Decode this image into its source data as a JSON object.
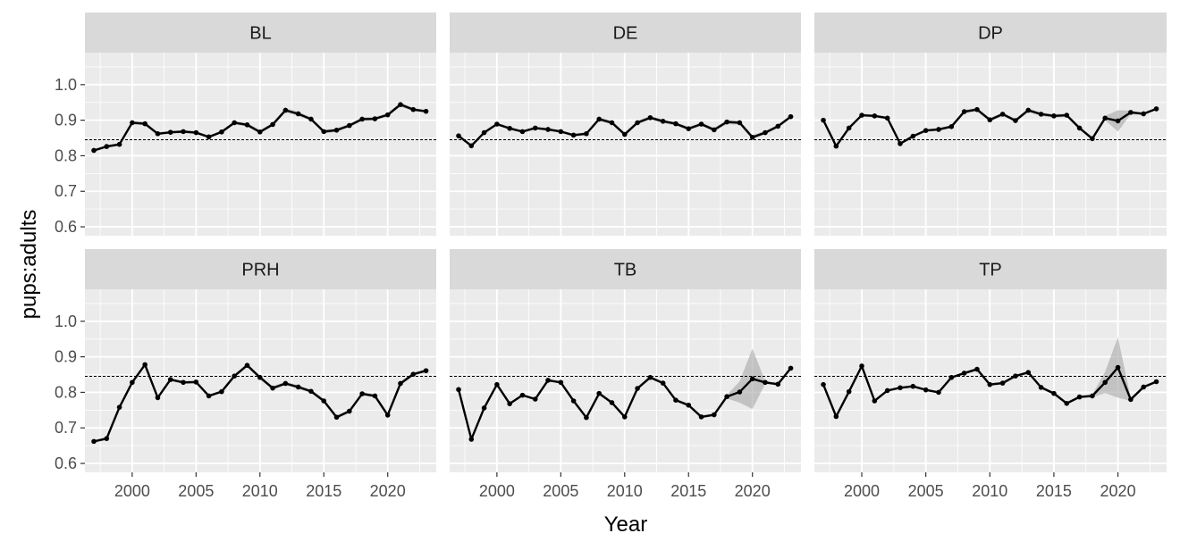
{
  "chart_data": {
    "type": "line",
    "xlabel": "Year",
    "ylabel": "pups:adults",
    "x_ticks": [
      2000,
      2005,
      2010,
      2015,
      2020
    ],
    "y_ticks": [
      0.6,
      0.7,
      0.8,
      0.9,
      1.0
    ],
    "y_tick_labels": [
      "0.6",
      "0.7",
      "0.8",
      "0.9",
      "1.0"
    ],
    "xlim": [
      1996.3,
      2023.8
    ],
    "ylim": [
      0.575,
      1.09
    ],
    "reference_line": 0.845,
    "grid": true,
    "x": [
      1997,
      1998,
      1999,
      2000,
      2001,
      2002,
      2003,
      2004,
      2005,
      2006,
      2007,
      2008,
      2009,
      2010,
      2011,
      2012,
      2013,
      2014,
      2015,
      2016,
      2017,
      2018,
      2019,
      2020,
      2021,
      2022,
      2023
    ],
    "panels": [
      {
        "name": "BL",
        "values": [
          0.815,
          0.826,
          0.832,
          0.893,
          0.89,
          0.862,
          0.866,
          0.868,
          0.865,
          0.853,
          0.867,
          0.893,
          0.887,
          0.867,
          0.888,
          0.928,
          0.918,
          0.903,
          0.868,
          0.872,
          0.885,
          0.903,
          0.904,
          0.915,
          0.944,
          0.93,
          0.925
        ],
        "ribbon": [
          0.004,
          0.004,
          0.004,
          0.005,
          0.005,
          0.004,
          0.004,
          0.004,
          0.004,
          0.004,
          0.004,
          0.005,
          0.005,
          0.005,
          0.005,
          0.006,
          0.006,
          0.005,
          0.005,
          0.005,
          0.005,
          0.005,
          0.005,
          0.005,
          0.006,
          0.005,
          0.004
        ]
      },
      {
        "name": "DE",
        "values": [
          0.856,
          0.828,
          0.865,
          0.889,
          0.877,
          0.868,
          0.878,
          0.874,
          0.868,
          0.858,
          0.862,
          0.903,
          0.893,
          0.86,
          0.893,
          0.907,
          0.897,
          0.89,
          0.876,
          0.889,
          0.873,
          0.895,
          0.893,
          0.852,
          0.865,
          0.883,
          0.91
        ],
        "ribbon": [
          0.004,
          0.004,
          0.004,
          0.004,
          0.004,
          0.004,
          0.004,
          0.004,
          0.004,
          0.004,
          0.004,
          0.005,
          0.005,
          0.005,
          0.005,
          0.005,
          0.005,
          0.005,
          0.005,
          0.005,
          0.005,
          0.006,
          0.006,
          0.006,
          0.005,
          0.005,
          0.004
        ]
      },
      {
        "name": "DP",
        "values": [
          0.9,
          0.827,
          0.878,
          0.914,
          0.912,
          0.906,
          0.834,
          0.855,
          0.871,
          0.874,
          0.882,
          0.924,
          0.93,
          0.901,
          0.917,
          0.899,
          0.928,
          0.917,
          0.912,
          0.914,
          0.878,
          0.848,
          0.906,
          0.898,
          0.922,
          0.918,
          0.932
        ],
        "ribbon": [
          0.003,
          0.003,
          0.003,
          0.004,
          0.004,
          0.004,
          0.004,
          0.004,
          0.004,
          0.004,
          0.004,
          0.005,
          0.005,
          0.005,
          0.005,
          0.005,
          0.005,
          0.005,
          0.005,
          0.005,
          0.005,
          0.005,
          0.006,
          0.03,
          0.005,
          0.004,
          0.003
        ]
      },
      {
        "name": "PRH",
        "values": [
          0.662,
          0.67,
          0.758,
          0.828,
          0.878,
          0.785,
          0.836,
          0.828,
          0.829,
          0.79,
          0.802,
          0.846,
          0.876,
          0.842,
          0.812,
          0.825,
          0.815,
          0.803,
          0.776,
          0.73,
          0.747,
          0.796,
          0.79,
          0.736,
          0.825,
          0.851,
          0.861
        ],
        "ribbon": [
          0.004,
          0.004,
          0.004,
          0.004,
          0.004,
          0.004,
          0.004,
          0.004,
          0.004,
          0.004,
          0.004,
          0.005,
          0.005,
          0.005,
          0.005,
          0.005,
          0.005,
          0.005,
          0.005,
          0.005,
          0.005,
          0.005,
          0.005,
          0.005,
          0.005,
          0.005,
          0.004
        ]
      },
      {
        "name": "TB",
        "values": [
          0.808,
          0.668,
          0.756,
          0.822,
          0.768,
          0.792,
          0.781,
          0.834,
          0.828,
          0.776,
          0.729,
          0.797,
          0.771,
          0.731,
          0.811,
          0.842,
          0.826,
          0.778,
          0.764,
          0.731,
          0.737,
          0.788,
          0.801,
          0.838,
          0.828,
          0.823,
          0.868
        ],
        "ribbon": [
          0.003,
          0.003,
          0.003,
          0.003,
          0.003,
          0.003,
          0.003,
          0.003,
          0.003,
          0.003,
          0.003,
          0.004,
          0.004,
          0.004,
          0.004,
          0.004,
          0.004,
          0.004,
          0.004,
          0.004,
          0.004,
          0.005,
          0.03,
          0.085,
          0.004,
          0.004,
          0.003
        ]
      },
      {
        "name": "TP",
        "values": [
          0.822,
          0.732,
          0.802,
          0.874,
          0.776,
          0.805,
          0.813,
          0.817,
          0.807,
          0.8,
          0.842,
          0.854,
          0.865,
          0.822,
          0.826,
          0.846,
          0.856,
          0.814,
          0.797,
          0.769,
          0.787,
          0.79,
          0.828,
          0.87,
          0.78,
          0.815,
          0.83
        ],
        "ribbon": [
          0.003,
          0.003,
          0.003,
          0.003,
          0.003,
          0.003,
          0.003,
          0.003,
          0.003,
          0.003,
          0.003,
          0.004,
          0.004,
          0.004,
          0.004,
          0.004,
          0.004,
          0.004,
          0.004,
          0.004,
          0.004,
          0.004,
          0.03,
          0.085,
          0.004,
          0.004,
          0.003
        ]
      }
    ]
  },
  "colors": {
    "panel_bg": "#ebebeb",
    "strip_bg": "#d9d9d9",
    "grid": "#ffffff",
    "line": "#000000",
    "ribbon": "#a6a6a6",
    "tick_text": "#4d4d4d",
    "tick_mark": "#333333"
  }
}
